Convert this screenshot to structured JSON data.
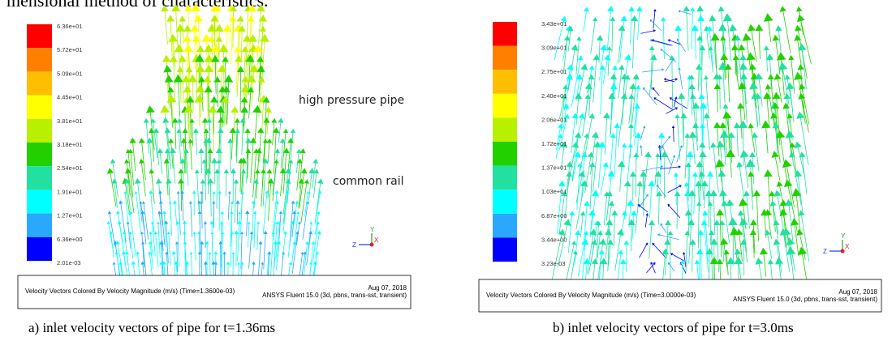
{
  "top_text": "mensional method of characteristics.",
  "panels": [
    {
      "legend_labels": [
        "6.36e+01",
        "5.72e+01",
        "5.09e+01",
        "4.45e+01",
        "3.81e+01",
        "3.18e+01",
        "2.54e+01",
        "1.91e+01",
        "1.27e+01",
        "6.36e+00",
        "2.01e-03"
      ],
      "legend_colors": [
        "#ff0000",
        "#ff7f00",
        "#ffbf00",
        "#ffff00",
        "#b8f000",
        "#22d000",
        "#22e0a0",
        "#00ffff",
        "#2aa8ff",
        "#0000ff"
      ],
      "annotations": [
        "high pressure pipe",
        "common rail"
      ],
      "axes": [
        "Y",
        "Z",
        "X"
      ],
      "footer_left": "Velocity Vectors Colored By Velocity Magnitude (m/s)  (Time=1.3600e-03)",
      "footer_date": "Aug 07, 2018",
      "footer_right": "ANSYS Fluent 15.0 (3d, pbns, trans-sst, transient)",
      "caption": "a) inlet velocity vectors of pipe for t=1.36ms"
    },
    {
      "legend_labels": [
        "3.43e+01",
        "3.09e+01",
        "2.75e+01",
        "2.40e+01",
        "2.06e+01",
        "1.72e+01",
        "1.37e+01",
        "1.03e+01",
        "6.87e+00",
        "3.44e+00",
        "3.23e-03"
      ],
      "legend_colors": [
        "#ff0000",
        "#ff7f00",
        "#ffbf00",
        "#ffff00",
        "#b8f000",
        "#22d000",
        "#22e0a0",
        "#00ffff",
        "#2aa8ff",
        "#0000ff"
      ],
      "annotations": [],
      "axes": [
        "Y",
        "Z",
        "X"
      ],
      "footer_left": "Velocity Vectors Colored By Velocity Magnitude (m/s)  (Time=3.0000e-03)",
      "footer_date": "Aug 07, 2018",
      "footer_right": "ANSYS Fluent 15.0 (3d, pbns, trans-sst, transient)",
      "caption": "b) inlet velocity vectors of pipe for t=3.0ms"
    }
  ]
}
